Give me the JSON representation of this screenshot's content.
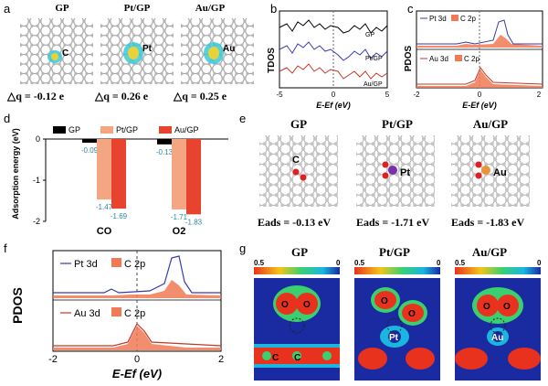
{
  "panel_a": {
    "label": "a",
    "items": [
      {
        "title": "GP",
        "atom": "C",
        "dq": "△q = -0.12 e"
      },
      {
        "title": "Pt/GP",
        "atom": "Pt",
        "dq": "△q = 0.26 e"
      },
      {
        "title": "Au/GP",
        "atom": "Au",
        "dq": "△q = 0.25 e"
      }
    ]
  },
  "panel_b": {
    "label": "b",
    "ylabel": "TDOS",
    "xlabel": "E-Ef (eV)",
    "xticks": [
      "-5",
      "0",
      "5"
    ],
    "series": [
      {
        "name": "GP",
        "color": "#000000"
      },
      {
        "name": "Pt/GP",
        "color": "#3a3aa8"
      },
      {
        "name": "Au/GP",
        "color": "#c0392b"
      }
    ]
  },
  "panel_c": {
    "label": "c",
    "ylabel": "PDOS",
    "xlabel": "E-Ef (eV)",
    "xticks": [
      "-2",
      "0",
      "2"
    ],
    "legend_top": [
      "Pt 3d",
      "C 2p"
    ],
    "legend_bottom": [
      "Au 3d",
      "C 2p"
    ]
  },
  "panel_d": {
    "label": "d",
    "chart_data": {
      "type": "bar",
      "categories": [
        "CO",
        "O2"
      ],
      "series": [
        {
          "name": "GP",
          "values": [
            -0.09,
            -0.13
          ],
          "color": "#000000"
        },
        {
          "name": "Pt/GP",
          "values": [
            -1.47,
            -1.71
          ],
          "color": "#f4a582"
        },
        {
          "name": "Au/GP",
          "values": [
            -1.69,
            -1.83
          ],
          "color": "#e8432e"
        }
      ],
      "value_labels": [
        [
          "-0.09",
          "-1.47",
          "-1.69"
        ],
        [
          "-0.13",
          "-1.71",
          "-1.83"
        ]
      ],
      "ylabel": "Adsorption energy (eV)",
      "yticks": [
        "0",
        "-1",
        "-2"
      ],
      "ylim": [
        -2,
        0
      ]
    }
  },
  "panel_e": {
    "label": "e",
    "items": [
      {
        "title": "GP",
        "atom": "C",
        "eads": "Eads = -0.13 eV"
      },
      {
        "title": "Pt/GP",
        "atom": "Pt",
        "eads": "Eads = -1.71 eV"
      },
      {
        "title": "Au/GP",
        "atom": "Au",
        "eads": "Eads = -1.83 eV"
      }
    ]
  },
  "panel_f": {
    "label": "f",
    "ylabel": "PDOS",
    "xlabel": "E-Ef (eV)",
    "xticks": [
      "-2",
      "0",
      "2"
    ],
    "legend_top": [
      "Pt 3d",
      "C 2p"
    ],
    "legend_bottom": [
      "Au 3d",
      "C 2p"
    ]
  },
  "panel_g": {
    "label": "g",
    "scale_max": "0.5",
    "scale_min": "0",
    "maps": [
      {
        "title": "GP",
        "labels": [
          "O",
          "O",
          "C",
          "C"
        ]
      },
      {
        "title": "Pt/GP",
        "labels": [
          "O",
          "O",
          "Pt"
        ]
      },
      {
        "title": "Au/GP",
        "labels": [
          "O",
          "O",
          "Au"
        ]
      }
    ]
  }
}
